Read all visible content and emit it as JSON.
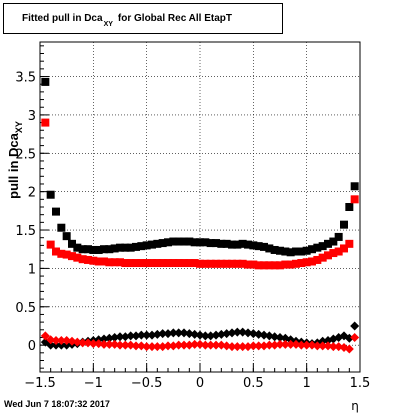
{
  "title": {
    "prefix": "Fitted pull in Dca",
    "subscript": "XY",
    "suffix": "for Global Rec All EtapT"
  },
  "footer": {
    "datestamp": "Wed Jun  7 18:07:32 2017"
  },
  "colors": {
    "series_black": "#000000",
    "series_red": "#ff0000"
  },
  "chart_data": {
    "type": "scatter",
    "title": "Fitted pull in Dca_XY for Global Rec All EtapT",
    "xlabel": "η",
    "ylabel": "pull in Dca",
    "ylabel_subscript": "XY",
    "xlim": [
      -1.5,
      1.5
    ],
    "ylim": [
      -0.35,
      3.95
    ],
    "grid": true,
    "x_ticks": [
      -1.5,
      -1,
      -0.5,
      0,
      0.5,
      1,
      1.5
    ],
    "x_tick_labels": [
      "−1.5",
      "−1",
      "−0.5",
      "0",
      "0.5",
      "1",
      "1.5"
    ],
    "y_ticks": [
      0,
      0.5,
      1,
      1.5,
      2,
      2.5,
      3,
      3.5
    ],
    "y_tick_labels": [
      "0",
      "0.5",
      "1",
      "1.5",
      "2",
      "2.5",
      "3",
      "3.5"
    ],
    "series": [
      {
        "marker": "square",
        "color": "#000000",
        "x": [
          -1.45,
          -1.4,
          -1.35,
          -1.3,
          -1.25,
          -1.2,
          -1.15,
          -1.1,
          -1.05,
          -1.0,
          -0.95,
          -0.9,
          -0.85,
          -0.8,
          -0.75,
          -0.7,
          -0.65,
          -0.6,
          -0.55,
          -0.5,
          -0.45,
          -0.4,
          -0.35,
          -0.3,
          -0.25,
          -0.2,
          -0.15,
          -0.1,
          -0.05,
          0.0,
          0.05,
          0.1,
          0.15,
          0.2,
          0.25,
          0.3,
          0.35,
          0.4,
          0.45,
          0.5,
          0.55,
          0.6,
          0.65,
          0.7,
          0.75,
          0.8,
          0.85,
          0.9,
          0.95,
          1.0,
          1.05,
          1.1,
          1.15,
          1.2,
          1.25,
          1.3,
          1.35,
          1.4,
          1.45
        ],
        "y": [
          3.43,
          1.96,
          1.74,
          1.53,
          1.42,
          1.32,
          1.27,
          1.25,
          1.25,
          1.24,
          1.24,
          1.25,
          1.25,
          1.26,
          1.27,
          1.27,
          1.27,
          1.28,
          1.29,
          1.3,
          1.31,
          1.32,
          1.33,
          1.34,
          1.35,
          1.35,
          1.35,
          1.35,
          1.34,
          1.34,
          1.34,
          1.33,
          1.33,
          1.32,
          1.32,
          1.31,
          1.31,
          1.32,
          1.31,
          1.3,
          1.29,
          1.28,
          1.26,
          1.24,
          1.23,
          1.22,
          1.21,
          1.22,
          1.22,
          1.23,
          1.25,
          1.27,
          1.29,
          1.32,
          1.35,
          1.41,
          1.57,
          1.8,
          2.07
        ]
      },
      {
        "marker": "square",
        "color": "#ff0000",
        "x": [
          -1.45,
          -1.4,
          -1.35,
          -1.3,
          -1.25,
          -1.2,
          -1.15,
          -1.1,
          -1.05,
          -1.0,
          -0.95,
          -0.9,
          -0.85,
          -0.8,
          -0.75,
          -0.7,
          -0.65,
          -0.6,
          -0.55,
          -0.5,
          -0.45,
          -0.4,
          -0.35,
          -0.3,
          -0.25,
          -0.2,
          -0.15,
          -0.1,
          -0.05,
          0.0,
          0.05,
          0.1,
          0.15,
          0.2,
          0.25,
          0.3,
          0.35,
          0.4,
          0.45,
          0.5,
          0.55,
          0.6,
          0.65,
          0.7,
          0.75,
          0.8,
          0.85,
          0.9,
          0.95,
          1.0,
          1.05,
          1.1,
          1.15,
          1.2,
          1.25,
          1.3,
          1.35,
          1.4,
          1.45
        ],
        "y": [
          2.9,
          1.31,
          1.22,
          1.19,
          1.18,
          1.16,
          1.14,
          1.12,
          1.11,
          1.1,
          1.09,
          1.09,
          1.08,
          1.08,
          1.08,
          1.07,
          1.07,
          1.07,
          1.07,
          1.07,
          1.07,
          1.07,
          1.07,
          1.07,
          1.07,
          1.07,
          1.07,
          1.07,
          1.07,
          1.06,
          1.06,
          1.06,
          1.06,
          1.06,
          1.06,
          1.06,
          1.06,
          1.06,
          1.05,
          1.05,
          1.04,
          1.04,
          1.04,
          1.04,
          1.04,
          1.05,
          1.05,
          1.06,
          1.07,
          1.08,
          1.09,
          1.11,
          1.14,
          1.17,
          1.2,
          1.22,
          1.26,
          1.32,
          1.9
        ]
      },
      {
        "marker": "diamond",
        "color": "#000000",
        "x": [
          -1.45,
          -1.4,
          -1.35,
          -1.3,
          -1.25,
          -1.2,
          -1.15,
          -1.1,
          -1.05,
          -1.0,
          -0.95,
          -0.9,
          -0.85,
          -0.8,
          -0.75,
          -0.7,
          -0.65,
          -0.6,
          -0.55,
          -0.5,
          -0.45,
          -0.4,
          -0.35,
          -0.3,
          -0.25,
          -0.2,
          -0.15,
          -0.1,
          -0.05,
          0.0,
          0.05,
          0.1,
          0.15,
          0.2,
          0.25,
          0.3,
          0.35,
          0.4,
          0.45,
          0.5,
          0.55,
          0.6,
          0.65,
          0.7,
          0.75,
          0.8,
          0.85,
          0.9,
          0.95,
          1.0,
          1.05,
          1.1,
          1.15,
          1.2,
          1.25,
          1.3,
          1.35,
          1.4,
          1.45
        ],
        "y": [
          0.04,
          0.0,
          0.0,
          0.0,
          0.0,
          0.01,
          0.02,
          0.04,
          0.05,
          0.06,
          0.07,
          0.08,
          0.09,
          0.1,
          0.11,
          0.11,
          0.12,
          0.12,
          0.13,
          0.13,
          0.13,
          0.14,
          0.15,
          0.15,
          0.16,
          0.16,
          0.16,
          0.15,
          0.14,
          0.13,
          0.12,
          0.12,
          0.13,
          0.14,
          0.15,
          0.16,
          0.17,
          0.17,
          0.16,
          0.15,
          0.14,
          0.13,
          0.12,
          0.11,
          0.1,
          0.09,
          0.07,
          0.05,
          0.04,
          0.03,
          0.02,
          0.03,
          0.05,
          0.06,
          0.08,
          0.1,
          0.12,
          0.09,
          0.25
        ]
      },
      {
        "marker": "diamond",
        "color": "#ff0000",
        "x": [
          -1.45,
          -1.4,
          -1.35,
          -1.3,
          -1.25,
          -1.2,
          -1.15,
          -1.1,
          -1.05,
          -1.0,
          -0.95,
          -0.9,
          -0.85,
          -0.8,
          -0.75,
          -0.7,
          -0.65,
          -0.6,
          -0.55,
          -0.5,
          -0.45,
          -0.4,
          -0.35,
          -0.3,
          -0.25,
          -0.2,
          -0.15,
          -0.1,
          -0.05,
          0.0,
          0.05,
          0.1,
          0.15,
          0.2,
          0.25,
          0.3,
          0.35,
          0.4,
          0.45,
          0.5,
          0.55,
          0.6,
          0.65,
          0.7,
          0.75,
          0.8,
          0.85,
          0.9,
          0.95,
          1.0,
          1.05,
          1.1,
          1.15,
          1.2,
          1.25,
          1.3,
          1.35,
          1.4,
          1.45
        ],
        "y": [
          0.12,
          0.07,
          0.06,
          0.06,
          0.06,
          0.05,
          0.04,
          0.03,
          0.03,
          0.02,
          0.02,
          0.01,
          0.01,
          0.01,
          0.0,
          0.0,
          0.0,
          -0.01,
          -0.01,
          -0.02,
          -0.02,
          -0.02,
          -0.02,
          -0.01,
          -0.01,
          0.0,
          0.0,
          0.0,
          0.01,
          0.01,
          0.0,
          0.0,
          0.0,
          0.0,
          -0.01,
          -0.02,
          -0.02,
          -0.02,
          -0.02,
          -0.01,
          -0.01,
          -0.01,
          0.0,
          0.0,
          0.01,
          0.01,
          0.01,
          0.01,
          0.0,
          0.0,
          0.0,
          -0.01,
          -0.01,
          -0.01,
          -0.02,
          -0.02,
          -0.03,
          -0.05,
          0.1
        ]
      }
    ]
  }
}
